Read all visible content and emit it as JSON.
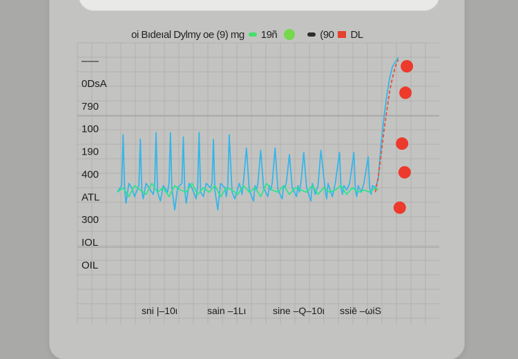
{
  "legend": {
    "title": "oi Bıdeıal Dylmy oe (9) mg",
    "items": [
      {
        "label": "19ñ",
        "swatch": "line",
        "color": "#45e06a"
      },
      {
        "label": "",
        "swatch": "dot",
        "color": "#76d84a"
      },
      {
        "label": "(90",
        "swatch": "line",
        "color": "#2d2d2d"
      },
      {
        "label": "DL",
        "swatch": "square",
        "color": "#e2442f"
      }
    ]
  },
  "chart_data": {
    "type": "line",
    "title": "oi Bıdeıal Dylmy oe (9) mg",
    "xlabel": "",
    "ylabel": "",
    "yticks": [
      "–––",
      "0DsA",
      "790",
      "100",
      "190",
      "400",
      "ΑΤL",
      "300",
      "ΙΟL",
      "ΟΙL"
    ],
    "xticks": [
      "sni |–10ι",
      "sain –1Lι",
      "sine –Q–10ι",
      "ssiē –ωiS"
    ],
    "ylim": [
      0,
      100
    ],
    "xlim": [
      0,
      100
    ],
    "grid": true,
    "series": [
      {
        "role": "blue-spikes",
        "color": "#2fb4ea",
        "x": [
          0,
          1.5,
          2,
          2.5,
          3,
          4,
          5,
          6,
          7.5,
          8,
          8.5,
          9,
          10,
          11,
          12.5,
          13,
          13.5,
          14,
          15,
          16,
          17.5,
          18,
          18.5,
          19,
          20,
          21,
          22.5,
          23,
          23.5,
          24,
          25,
          26,
          27.5,
          28,
          28.5,
          29,
          30,
          31,
          32.5,
          33,
          33.5,
          34,
          35,
          36,
          37.5,
          38,
          38.5,
          39,
          40,
          41,
          42.5,
          43,
          43.5,
          44,
          45,
          46,
          47.5,
          48,
          48.5,
          49,
          50,
          51,
          52.5,
          53,
          53.5,
          54,
          55,
          56,
          57.5,
          58,
          58.5,
          59,
          60,
          61,
          62.5,
          63,
          63.5,
          64,
          65,
          66,
          67.5,
          68,
          68.5,
          69,
          70,
          71,
          72.5,
          73,
          73.5,
          74,
          75,
          76,
          77.5,
          78,
          78.5,
          79,
          80,
          81,
          82.5,
          83,
          83.5,
          84,
          85,
          86,
          87.5,
          88,
          88.5,
          89,
          90,
          91,
          92,
          93,
          94,
          95,
          96,
          97,
          98
        ],
        "y": [
          38,
          41,
          64,
          40,
          33,
          42,
          40,
          36,
          41,
          62,
          39,
          35,
          42,
          40,
          37,
          41,
          65,
          38,
          34,
          41,
          38,
          42,
          65,
          40,
          30,
          40,
          42,
          63,
          39,
          33,
          42,
          40,
          35,
          41,
          65,
          38,
          36,
          42,
          40,
          42,
          62,
          39,
          30,
          42,
          40,
          36,
          41,
          64,
          38,
          35,
          42,
          40,
          37,
          43,
          58,
          39,
          34,
          41,
          39,
          42,
          57,
          40,
          36,
          41,
          39,
          42,
          58,
          39,
          35,
          41,
          40,
          43,
          55,
          40,
          36,
          41,
          38,
          42,
          56,
          40,
          34,
          42,
          40,
          37,
          41,
          57,
          39,
          35,
          42,
          40,
          36,
          42,
          56,
          40,
          37,
          41,
          39,
          42,
          56,
          39,
          36,
          41,
          38,
          42,
          54,
          40,
          37,
          41,
          40,
          44,
          60,
          72,
          82,
          90,
          95,
          97,
          99
        ]
      },
      {
        "role": "green-baseline",
        "color": "#27e58a",
        "x": [
          0,
          2,
          4,
          6,
          8,
          10,
          12,
          14,
          16,
          18,
          20,
          22,
          24,
          26,
          28,
          30,
          32,
          34,
          36,
          38,
          40,
          42,
          44,
          46,
          48,
          50,
          52,
          54,
          56,
          58,
          60,
          62,
          64,
          66,
          68,
          70,
          72,
          74,
          76,
          78,
          80,
          82,
          84,
          86,
          88,
          90,
          91
        ],
        "y": [
          38,
          40,
          36,
          41,
          39,
          37,
          42,
          38,
          40,
          36,
          41,
          39,
          38,
          42,
          37,
          40,
          38,
          41,
          36,
          40,
          39,
          37,
          41,
          38,
          40,
          36,
          42,
          39,
          38,
          41,
          37,
          40,
          39,
          38,
          41,
          37,
          40,
          38,
          39,
          41,
          37,
          40,
          38,
          39,
          38,
          40,
          39
        ]
      },
      {
        "role": "red-ramp",
        "color": "#e3543c",
        "x": [
          90,
          91,
          92,
          93,
          94,
          95,
          96,
          97,
          98
        ],
        "y": [
          38,
          45,
          55,
          66,
          75,
          84,
          90,
          95,
          98
        ]
      }
    ],
    "markers": {
      "color": "#ec3a2c",
      "points": [
        {
          "x": 101,
          "y": 95
        },
        {
          "x": 100.5,
          "y": 83
        },
        {
          "x": 99.3,
          "y": 60
        },
        {
          "x": 100.2,
          "y": 47
        },
        {
          "x": 98.5,
          "y": 31
        }
      ]
    }
  }
}
